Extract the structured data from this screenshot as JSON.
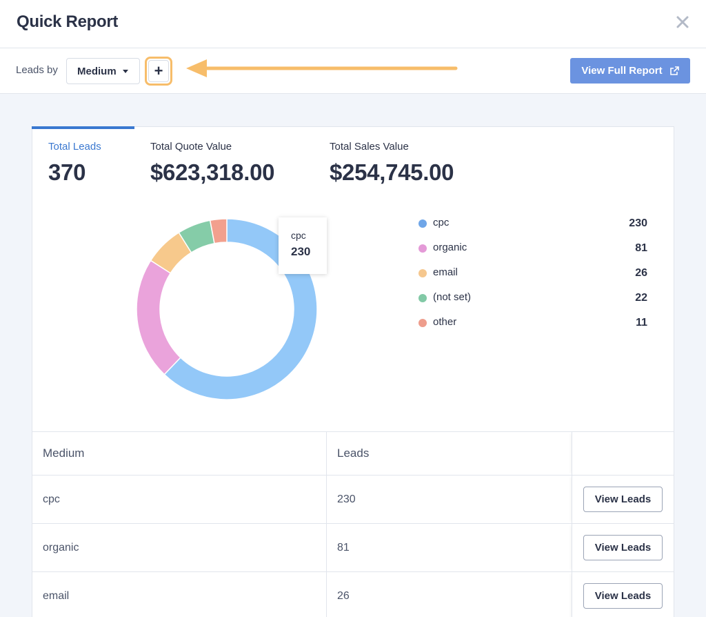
{
  "header": {
    "title": "Quick Report"
  },
  "toolbar": {
    "leads_by_label": "Leads by",
    "group_select_value": "Medium",
    "add_label": "+",
    "full_report_label": "View Full Report"
  },
  "metrics": [
    {
      "label": "Total Leads",
      "value": "370"
    },
    {
      "label": "Total Quote Value",
      "value": "$623,318.00"
    },
    {
      "label": "Total Sales Value",
      "value": "$254,745.00"
    }
  ],
  "chart_data": {
    "type": "pie",
    "variant": "donut",
    "categories": [
      "cpc",
      "organic",
      "email",
      "(not set)",
      "other"
    ],
    "values": [
      230,
      81,
      26,
      22,
      11
    ],
    "colors": [
      "#93c8f8",
      "#eaa3db",
      "#f7c98c",
      "#85cca8",
      "#f2a08e"
    ],
    "tooltip": {
      "name": "cpc",
      "value": "230"
    }
  },
  "legend": {
    "items": [
      {
        "name": "cpc",
        "count": "230",
        "color": "#6fa6e8"
      },
      {
        "name": "organic",
        "count": "81",
        "color": "#e49ad7"
      },
      {
        "name": "email",
        "count": "26",
        "color": "#f5c78e"
      },
      {
        "name": "(not set)",
        "count": "22",
        "color": "#82c9a6"
      },
      {
        "name": "other",
        "count": "11",
        "color": "#ee9d8c"
      }
    ]
  },
  "table": {
    "headers": {
      "medium": "Medium",
      "leads": "Leads"
    },
    "rows": [
      {
        "medium": "cpc",
        "leads": "230",
        "action": "View Leads"
      },
      {
        "medium": "organic",
        "leads": "81",
        "action": "View Leads"
      },
      {
        "medium": "email",
        "leads": "26",
        "action": "View Leads"
      }
    ]
  },
  "colors": {
    "accent": "#3a78d0",
    "button": "#6b93e0",
    "highlight": "#f7bd6a"
  }
}
